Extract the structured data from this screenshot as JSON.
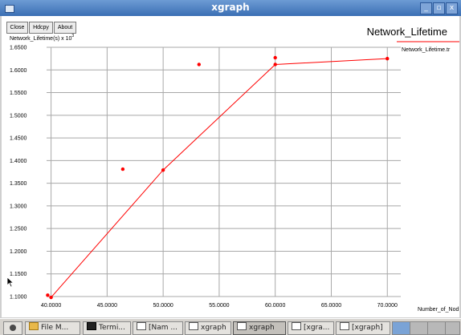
{
  "window": {
    "title": "xgraph",
    "controls": [
      "_",
      "▫",
      "x"
    ]
  },
  "toolbar": {
    "close": "Close",
    "hdcpy": "Hdcpy",
    "about": "About"
  },
  "graph": {
    "title": "Network_Lifetime"
  },
  "chart_data": {
    "type": "line",
    "title": "Network_Lifetime",
    "ylabel_prefix": "Network_Lifetime(s) x 10",
    "ylabel_exp": "3",
    "xlabel": "Number_of_Nod",
    "legend": "Network_Lifetime.tr",
    "xlim": [
      39.6,
      71.2
    ],
    "ylim": [
      1.1,
      1.65
    ],
    "x_ticks": [
      "40.0000",
      "45.0000",
      "50.0000",
      "55.0000",
      "60.0000",
      "65.0000",
      "70.0000"
    ],
    "y_ticks": [
      "1.1000",
      "1.1500",
      "1.2000",
      "1.2500",
      "1.3000",
      "1.3500",
      "1.4000",
      "1.4500",
      "1.5000",
      "1.5500",
      "1.6000",
      "1.6500"
    ],
    "series": [
      {
        "name": "Network_Lifetime.tr",
        "color": "#ff0000",
        "x": [
          40,
          50,
          60,
          70
        ],
        "y": [
          1.098,
          1.379,
          1.612,
          1.625
        ]
      }
    ],
    "scatter": {
      "color": "#ff0000",
      "x": [
        39.7,
        46.4,
        53.2,
        60.0
      ],
      "y": [
        1.103,
        1.381,
        1.612,
        1.627
      ]
    },
    "grid": true,
    "legend_position": "top-right"
  },
  "taskbar": {
    "items": [
      {
        "label": "File M...",
        "icon": "folder-icon"
      },
      {
        "label": "Termi...",
        "icon": "terminal-icon"
      },
      {
        "label": "[Nam ...",
        "icon": "window-icon"
      },
      {
        "label": "xgraph",
        "icon": "window-icon"
      },
      {
        "label": "xgraph",
        "icon": "window-icon"
      },
      {
        "label": "[xgra...",
        "icon": "window-icon"
      },
      {
        "label": "[xgraph]",
        "icon": "window-icon"
      }
    ]
  }
}
